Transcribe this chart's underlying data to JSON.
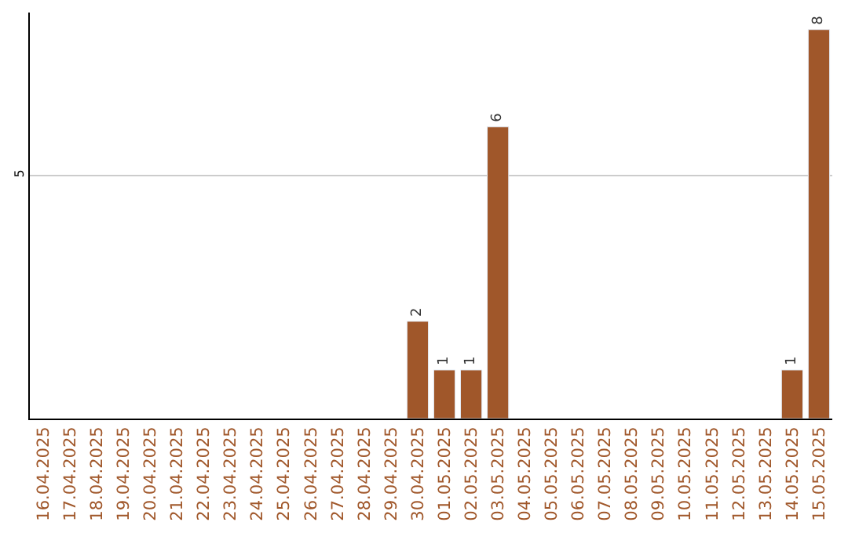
{
  "chart_data": {
    "type": "bar",
    "ylim": [
      0,
      8.35
    ],
    "yticks": [
      5
    ],
    "grid": "y",
    "categories": [
      "16.04.2025",
      "17.04.2025",
      "18.04.2025",
      "19.04.2025",
      "20.04.2025",
      "21.04.2025",
      "22.04.2025",
      "23.04.2025",
      "24.04.2025",
      "25.04.2025",
      "26.04.2025",
      "27.04.2025",
      "28.04.2025",
      "29.04.2025",
      "30.04.2025",
      "01.05.2025",
      "02.05.2025",
      "03.05.2025",
      "04.05.2025",
      "05.05.2025",
      "06.05.2025",
      "07.05.2025",
      "08.05.2025",
      "09.05.2025",
      "10.05.2025",
      "11.05.2025",
      "12.05.2025",
      "13.05.2025",
      "14.05.2025",
      "15.05.2025"
    ],
    "values": [
      null,
      null,
      null,
      null,
      null,
      null,
      null,
      null,
      null,
      null,
      null,
      null,
      null,
      null,
      2,
      1,
      1,
      6,
      null,
      null,
      null,
      null,
      null,
      null,
      null,
      null,
      null,
      null,
      1,
      8
    ],
    "data_labels": true,
    "color": "#a0572a",
    "legend": false
  }
}
